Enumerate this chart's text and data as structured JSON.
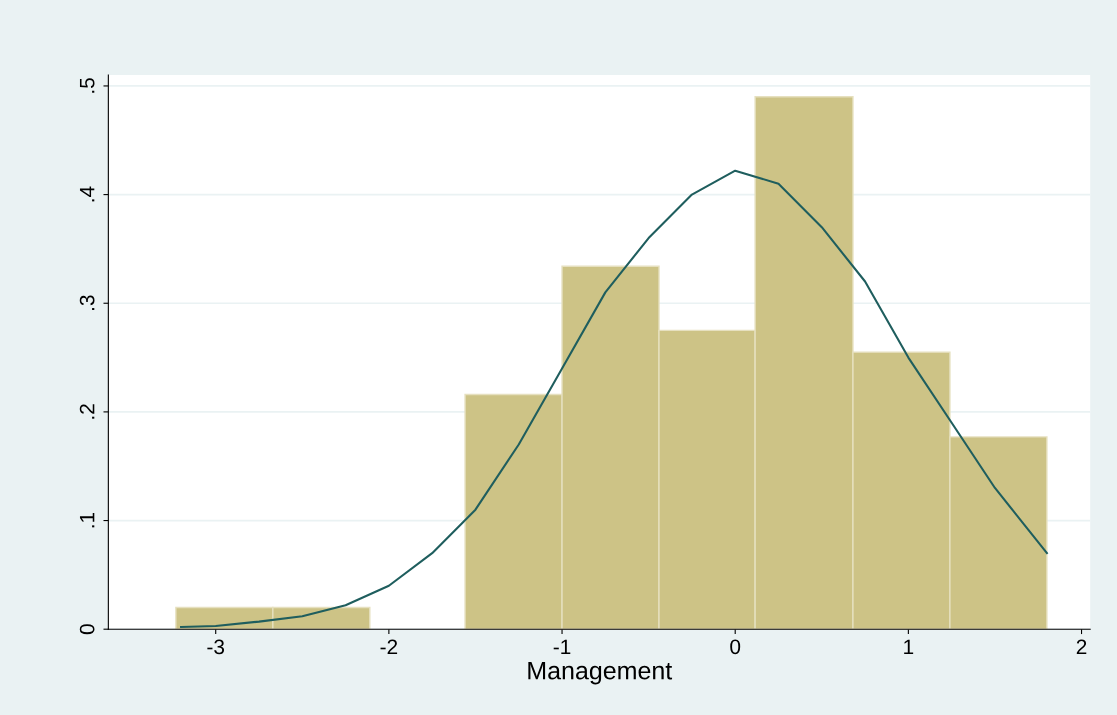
{
  "chart_data": {
    "type": "histogram",
    "xlabel": "Management",
    "bins": [
      -3.23,
      -2.67,
      -2.11,
      -1.56,
      -1.0,
      -0.44,
      0.115,
      0.68,
      1.24,
      1.8
    ],
    "values": [
      0.02,
      0.02,
      0,
      0.216,
      0.334,
      0.275,
      0.49,
      0.255,
      0.177
    ],
    "color": "#cdc386",
    "series": [
      {
        "type": "line",
        "color": "#1f5e5e",
        "x": [
          -3.2,
          -3.0,
          -2.75,
          -2.5,
          -2.25,
          -2.0,
          -1.75,
          -1.5,
          -1.25,
          -1.0,
          -0.75,
          -0.5,
          -0.25,
          0.0,
          0.25,
          0.5,
          0.75,
          1.0,
          1.25,
          1.5,
          1.6,
          1.8
        ],
        "values": [
          0.002,
          0.003,
          0.007,
          0.012,
          0.022,
          0.04,
          0.07,
          0.11,
          0.17,
          0.24,
          0.31,
          0.36,
          0.4,
          0.422,
          0.41,
          0.37,
          0.32,
          0.25,
          0.19,
          0.13,
          0.11,
          0.07
        ]
      }
    ],
    "xlim": [
      -3.62,
      2.05
    ],
    "ylim": [
      0,
      0.51
    ],
    "xticks": [
      -3,
      -2,
      -1,
      0,
      1,
      2
    ],
    "yticks": [
      {
        "value": 0,
        "label": "0"
      },
      {
        "value": 0.1,
        "label": ".1"
      },
      {
        "value": 0.2,
        "label": ".2"
      },
      {
        "value": 0.3,
        "label": ".3"
      },
      {
        "value": 0.4,
        "label": ".4"
      },
      {
        "value": 0.5,
        "label": ".5"
      }
    ],
    "grid": "y"
  }
}
